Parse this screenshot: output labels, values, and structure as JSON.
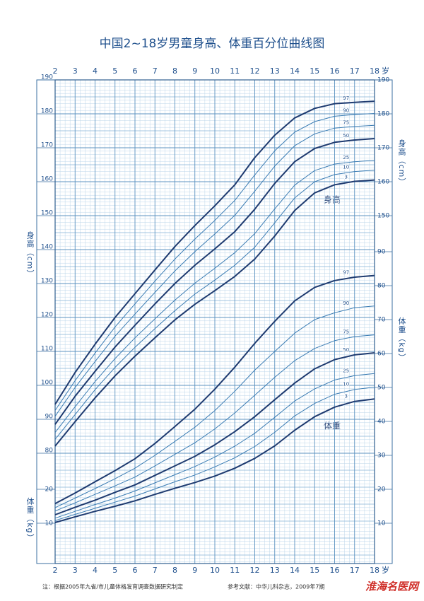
{
  "chart_data": {
    "type": "line",
    "title": "中国2~18岁男童身高、体重百分位曲线图",
    "x": [
      2,
      3,
      4,
      5,
      6,
      7,
      8,
      9,
      10,
      11,
      12,
      13,
      14,
      15,
      16,
      17,
      18
    ],
    "xlim": [
      2,
      18
    ],
    "xticks": [
      2,
      3,
      4,
      5,
      6,
      7,
      8,
      9,
      10,
      11,
      12,
      13,
      14,
      15,
      16,
      17,
      18
    ],
    "x_unit": "岁",
    "ylim": [
      47.5,
      190
    ],
    "yticks": [
      80,
      90,
      100,
      110,
      120,
      130,
      140,
      150,
      160,
      170,
      180,
      190
    ],
    "right_yticks": [
      150,
      160,
      170,
      180,
      190
    ],
    "y2lim": [
      -1.875,
      140.625
    ],
    "y2ticks": [
      10,
      20,
      30,
      40,
      50,
      60,
      70,
      80,
      90
    ],
    "left_y2ticks": [
      10,
      20
    ],
    "y_label": "身高（cm）",
    "y2_label": "体重（kg）",
    "annotations": [
      "身高",
      "体重"
    ],
    "series": [
      {
        "name": "97",
        "color": "#1f3b70",
        "values": [
          94.4,
          103.8,
          112.1,
          120.0,
          127.0,
          134.0,
          140.9,
          147.1,
          152.9,
          159.1,
          167.1,
          173.7,
          178.8,
          181.6,
          183.0,
          183.4,
          183.7
        ]
      },
      {
        "name": "90",
        "color": "#3b7cb3",
        "values": [
          92.6,
          101.4,
          109.5,
          117.2,
          124.0,
          130.7,
          137.2,
          143.1,
          148.6,
          154.5,
          162.0,
          169.1,
          174.6,
          177.7,
          179.3,
          179.8,
          180.1
        ]
      },
      {
        "name": "75",
        "color": "#3b7cb3",
        "values": [
          90.9,
          99.4,
          107.0,
          114.5,
          121.0,
          127.4,
          133.7,
          139.4,
          144.6,
          150.1,
          157.2,
          164.6,
          170.6,
          174.1,
          175.8,
          176.3,
          176.6
        ]
      },
      {
        "name": "50",
        "color": "#1f3b70",
        "values": [
          88.5,
          96.8,
          104.1,
          111.3,
          117.7,
          124.0,
          130.0,
          135.4,
          140.2,
          145.3,
          151.9,
          159.5,
          165.9,
          169.8,
          171.6,
          172.3,
          172.7
        ]
      },
      {
        "name": "25",
        "color": "#3b7cb3",
        "values": [
          86.1,
          93.7,
          101.1,
          107.9,
          114.0,
          119.6,
          125.1,
          130.1,
          134.5,
          139.1,
          144.7,
          152.0,
          159.0,
          163.3,
          165.2,
          165.9,
          166.3
        ]
      },
      {
        "name": "10",
        "color": "#3b7cb3",
        "values": [
          84.1,
          91.4,
          98.7,
          105.3,
          111.2,
          116.7,
          122.0,
          126.9,
          131.0,
          135.4,
          140.7,
          147.9,
          155.2,
          160.0,
          162.1,
          163.0,
          163.4
        ]
      },
      {
        "name": "3",
        "color": "#1f3b70",
        "values": [
          82.1,
          89.3,
          96.3,
          102.8,
          108.6,
          114.0,
          119.3,
          123.9,
          127.9,
          132.1,
          137.2,
          144.0,
          151.5,
          156.7,
          159.1,
          160.1,
          160.5
        ]
      },
      {
        "name": "97",
        "color": "#1f3b70",
        "axis": "y2",
        "values": [
          15.8,
          18.9,
          22.2,
          25.5,
          29.0,
          33.5,
          38.5,
          43.6,
          49.5,
          56.0,
          63.0,
          69.5,
          75.5,
          79.5,
          81.5,
          82.5,
          83.0
        ]
      },
      {
        "name": "90",
        "color": "#3b7cb3",
        "axis": "y2",
        "values": [
          14.6,
          17.4,
          20.2,
          23.1,
          26.2,
          30.0,
          34.1,
          38.3,
          43.2,
          48.9,
          55.1,
          60.6,
          66.0,
          70.0,
          72.0,
          73.5,
          74.0
        ]
      },
      {
        "name": "75",
        "color": "#3b7cb3",
        "axis": "y2",
        "values": [
          13.6,
          16.0,
          18.5,
          21.0,
          23.6,
          26.9,
          30.3,
          33.7,
          37.8,
          42.5,
          47.7,
          53.0,
          57.9,
          61.5,
          63.8,
          65.0,
          65.5
        ]
      },
      {
        "name": "50",
        "color": "#1f3b70",
        "axis": "y2",
        "values": [
          12.5,
          14.7,
          16.8,
          19.1,
          21.3,
          24.1,
          26.9,
          29.7,
          33.1,
          37.0,
          41.4,
          46.4,
          51.3,
          55.5,
          58.2,
          59.6,
          60.2
        ]
      },
      {
        "name": "25",
        "color": "#3b7cb3",
        "axis": "y2",
        "values": [
          11.5,
          13.5,
          15.5,
          17.4,
          19.5,
          21.9,
          24.3,
          26.7,
          29.5,
          32.7,
          36.5,
          41.2,
          46.0,
          49.6,
          52.2,
          53.5,
          54.1
        ]
      },
      {
        "name": "10",
        "color": "#3b7cb3",
        "axis": "y2",
        "values": [
          10.8,
          12.6,
          14.4,
          16.2,
          18.0,
          20.1,
          22.2,
          24.2,
          26.6,
          29.3,
          32.6,
          36.8,
          41.6,
          45.3,
          48.0,
          49.4,
          50.1
        ]
      },
      {
        "name": "3",
        "color": "#1f3b70",
        "axis": "y2",
        "values": [
          10.2,
          11.9,
          13.5,
          15.0,
          16.6,
          18.5,
          20.3,
          22.0,
          23.9,
          26.2,
          29.1,
          32.8,
          37.4,
          41.4,
          44.2,
          45.9,
          46.6
        ]
      }
    ],
    "notes": [
      "注：根据2005年九省/市儿童体格发育调查数据研究制定",
      "参考文献：中华儿科杂志，2009年7期"
    ],
    "watermark": "淮海名医网"
  }
}
